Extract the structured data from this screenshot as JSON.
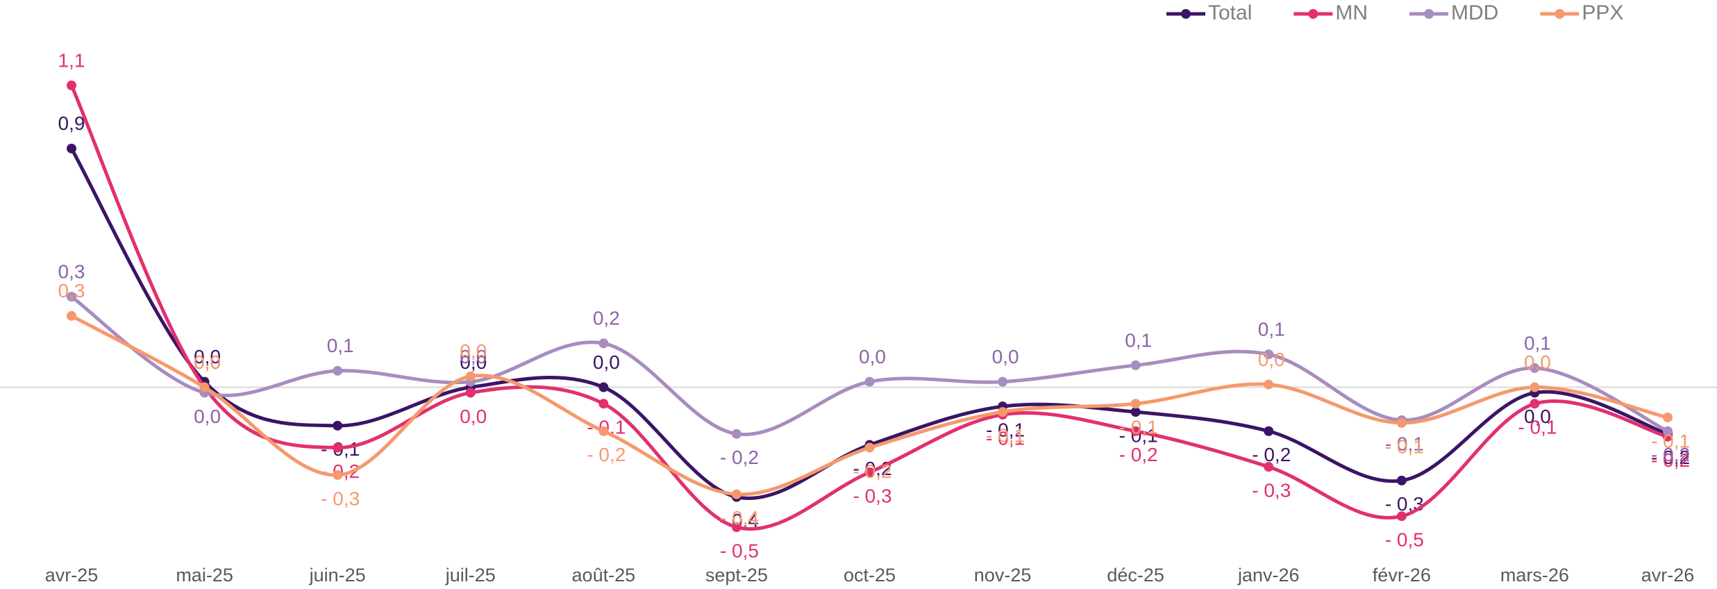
{
  "chart_data": {
    "type": "line",
    "categories": [
      "avr-25",
      "mai-25",
      "juin-25",
      "juil-25",
      "août-25",
      "sept-25",
      "oct-25",
      "nov-25",
      "déc-25",
      "janv-26",
      "févr-26",
      "mars-26",
      "avr-26"
    ],
    "series": [
      {
        "name": "Total",
        "color": "#3b1466",
        "values": [
          0.87,
          0.02,
          -0.14,
          0.0,
          0.0,
          -0.4,
          -0.21,
          -0.07,
          -0.09,
          -0.16,
          -0.34,
          -0.02,
          -0.17
        ],
        "value_labels": [
          "0,9",
          "0,0",
          "- 0,1",
          "0,0",
          "0,0",
          "- 0,4",
          "- 0,2",
          "- 0,1",
          "- 0,1",
          "- 0,2",
          "- 0,3",
          "0,0",
          "- 0,2"
        ]
      },
      {
        "name": "MN",
        "color": "#e2306e",
        "values": [
          1.1,
          0.0,
          -0.22,
          -0.02,
          -0.06,
          -0.51,
          -0.31,
          -0.1,
          -0.16,
          -0.29,
          -0.47,
          -0.06,
          -0.18
        ],
        "value_labels": [
          "1,1",
          "0,0",
          "- 0,2",
          "0,0",
          "- 0,1",
          "- 0,5",
          "- 0,3",
          "- 0,1",
          "- 0,2",
          "- 0,3",
          "- 0,5",
          "- 0,1",
          "- 0,2"
        ]
      },
      {
        "name": "MDD",
        "color": "#a88cbf",
        "values": [
          0.33,
          -0.02,
          0.06,
          0.02,
          0.16,
          -0.17,
          0.02,
          0.02,
          0.08,
          0.12,
          -0.12,
          0.07,
          -0.16
        ],
        "value_labels": [
          "0,3",
          "0,0",
          "0,1",
          "0,0",
          "0,2",
          "- 0,2",
          "0,0",
          "0,0",
          "0,1",
          "0,1",
          "- 0,1",
          "0,1",
          "- 0,2"
        ]
      },
      {
        "name": "PPX",
        "color": "#f5996d",
        "values": [
          0.26,
          0.0,
          -0.32,
          0.04,
          -0.16,
          -0.39,
          -0.22,
          -0.09,
          -0.06,
          0.01,
          -0.13,
          0.0,
          -0.11
        ],
        "value_labels": [
          "0,3",
          "0,0",
          "- 0,3",
          "0,0",
          "- 0,2",
          "- 0,4",
          "- 0,2",
          "- 0,1",
          "- 0,1",
          "0,0",
          "- 0,1",
          "0,0",
          "- 0,1"
        ]
      }
    ]
  }
}
